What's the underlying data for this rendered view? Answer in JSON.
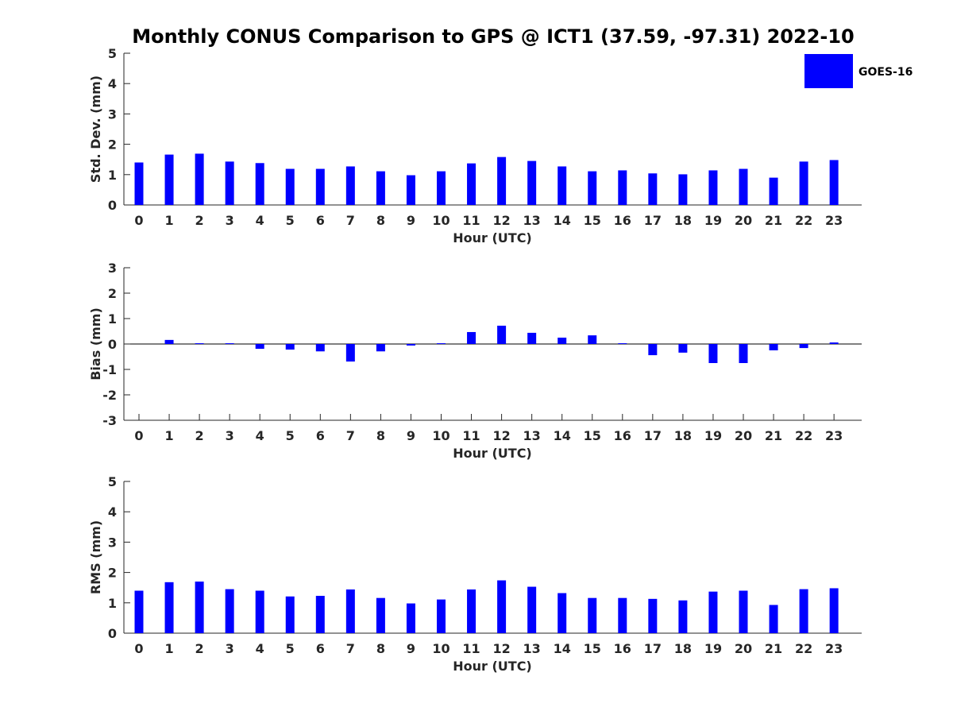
{
  "title": "Monthly CONUS Comparison to GPS @ ICT1 (37.59, -97.31) 2022-10",
  "bar_color": "#0000ff",
  "axis_color": "#262626",
  "chart_data": [
    {
      "type": "bar",
      "xlabel": "Hour (UTC)",
      "ylabel": "Std. Dev. (mm)",
      "ylim": [
        0,
        5
      ],
      "yticks": [
        0,
        1,
        2,
        3,
        4,
        5
      ],
      "categories": [
        "0",
        "1",
        "2",
        "3",
        "4",
        "5",
        "6",
        "7",
        "8",
        "9",
        "10",
        "11",
        "12",
        "13",
        "14",
        "15",
        "16",
        "17",
        "18",
        "19",
        "20",
        "21",
        "22",
        "23"
      ],
      "series": [
        {
          "name": "GOES-16",
          "values": [
            1.4,
            1.66,
            1.69,
            1.43,
            1.38,
            1.19,
            1.19,
            1.27,
            1.11,
            0.98,
            1.11,
            1.37,
            1.58,
            1.45,
            1.27,
            1.11,
            1.14,
            1.04,
            1.01,
            1.14,
            1.19,
            0.9,
            1.43,
            1.48
          ]
        }
      ],
      "legend": {
        "position": "top-right",
        "entries": [
          "GOES-16"
        ]
      }
    },
    {
      "type": "bar",
      "xlabel": "Hour (UTC)",
      "ylabel": "Bias (mm)",
      "ylim": [
        -3,
        3
      ],
      "yticks": [
        -3,
        -2,
        -1,
        0,
        1,
        2,
        3
      ],
      "categories": [
        "0",
        "1",
        "2",
        "3",
        "4",
        "5",
        "6",
        "7",
        "8",
        "9",
        "10",
        "11",
        "12",
        "13",
        "14",
        "15",
        "16",
        "17",
        "18",
        "19",
        "20",
        "21",
        "22",
        "23"
      ],
      "series": [
        {
          "name": "GOES-16",
          "values": [
            0.0,
            0.16,
            0.03,
            0.03,
            -0.19,
            -0.22,
            -0.29,
            -0.69,
            -0.29,
            -0.06,
            0.03,
            0.47,
            0.72,
            0.44,
            0.25,
            0.34,
            0.03,
            -0.44,
            -0.34,
            -0.75,
            -0.75,
            -0.25,
            -0.16,
            0.06
          ]
        }
      ]
    },
    {
      "type": "bar",
      "xlabel": "Hour (UTC)",
      "ylabel": "RMS (mm)",
      "ylim": [
        0,
        5
      ],
      "yticks": [
        0,
        1,
        2,
        3,
        4,
        5
      ],
      "categories": [
        "0",
        "1",
        "2",
        "3",
        "4",
        "5",
        "6",
        "7",
        "8",
        "9",
        "10",
        "11",
        "12",
        "13",
        "14",
        "15",
        "16",
        "17",
        "18",
        "19",
        "20",
        "21",
        "22",
        "23"
      ],
      "series": [
        {
          "name": "GOES-16",
          "values": [
            1.4,
            1.68,
            1.7,
            1.45,
            1.4,
            1.21,
            1.23,
            1.44,
            1.16,
            0.98,
            1.11,
            1.44,
            1.74,
            1.53,
            1.32,
            1.16,
            1.16,
            1.13,
            1.08,
            1.37,
            1.4,
            0.93,
            1.45,
            1.48
          ]
        }
      ]
    }
  ]
}
